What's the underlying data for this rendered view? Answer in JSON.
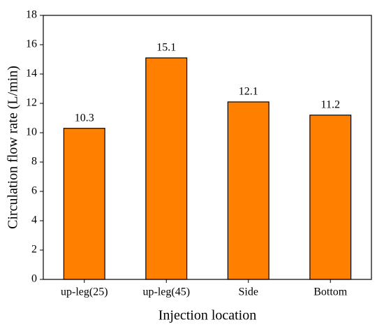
{
  "chart_data": {
    "type": "bar",
    "xlabel": "Injection location",
    "ylabel": "Circulation flow rate (L/min)",
    "categories": [
      "up-leg(25)",
      "up-leg(45)",
      "Side",
      "Bottom"
    ],
    "values": [
      10.3,
      15.1,
      12.1,
      11.2
    ],
    "color": "#ff7f00",
    "ylim": [
      0,
      18
    ],
    "yticks": [
      0,
      2,
      4,
      6,
      8,
      10,
      12,
      14,
      16,
      18
    ],
    "grid": false
  }
}
